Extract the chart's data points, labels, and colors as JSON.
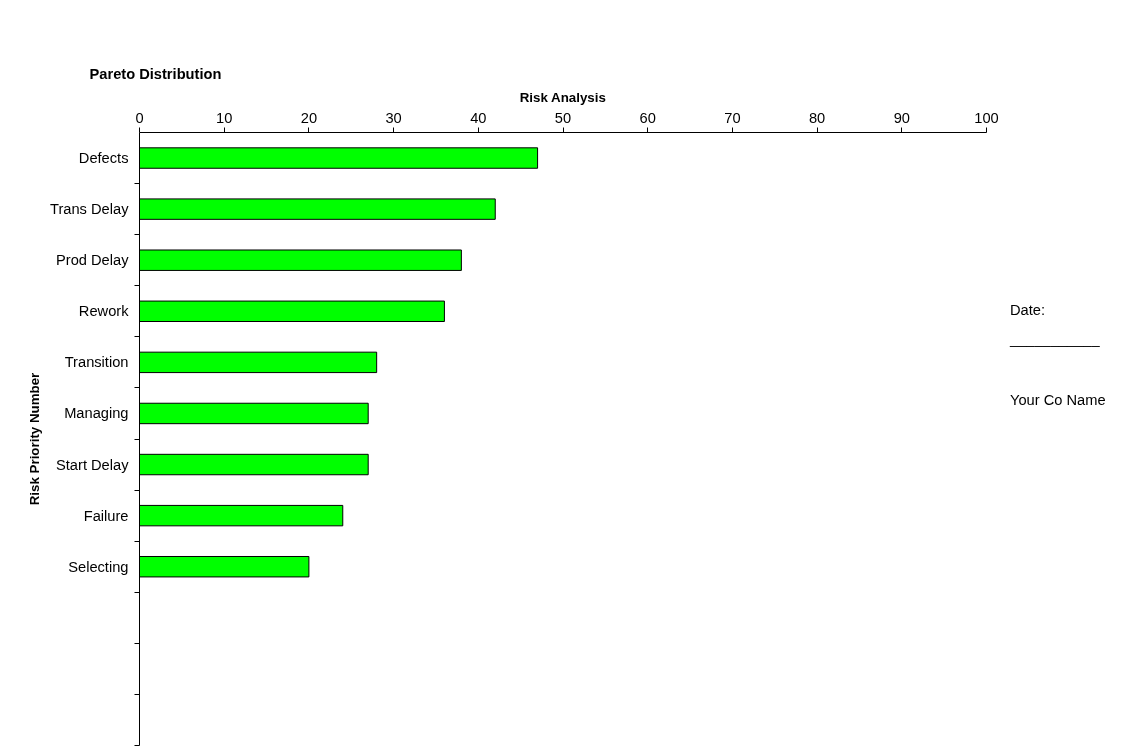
{
  "chart_data": {
    "type": "bar",
    "orientation": "horizontal",
    "title": "Pareto Distribution",
    "xlabel": "Risk Analysis",
    "ylabel": "Risk Priority Number",
    "categories": [
      "Defects",
      "Trans Delay",
      "Prod Delay",
      "Rework",
      "Transition",
      "Managing",
      "Start Delay",
      "Failure",
      "Selecting",
      null,
      null,
      null
    ],
    "values": [
      47,
      42,
      38,
      36,
      28,
      27,
      27,
      24,
      20,
      null,
      null,
      null
    ],
    "color": "#00ff00",
    "xlim": [
      0,
      100
    ],
    "xticks": [
      0,
      10,
      20,
      30,
      40,
      50,
      60,
      70,
      80,
      90,
      100
    ],
    "grid": false,
    "annotations": [
      "Date:",
      "___________",
      "Your Co Name"
    ]
  }
}
